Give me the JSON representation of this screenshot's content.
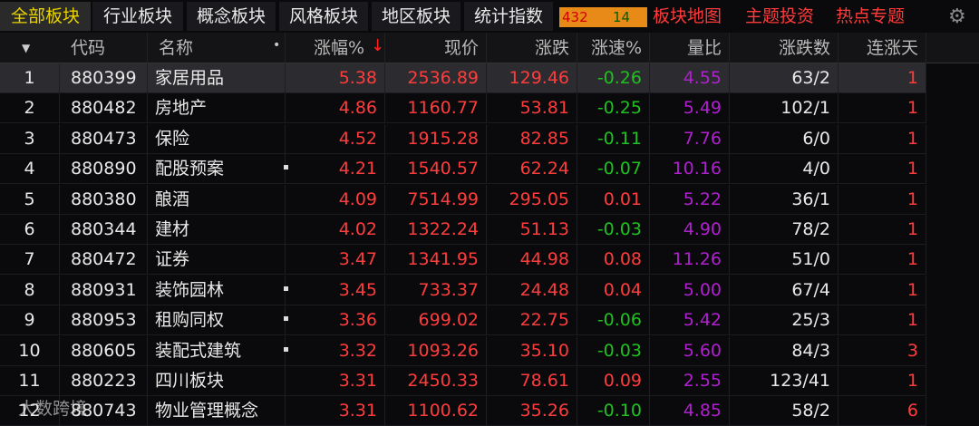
{
  "header": {
    "tabs": [
      "全部板块",
      "行业板块",
      "概念板块",
      "风格板块",
      "地区板块",
      "统计指数"
    ],
    "stats": {
      "up": 432,
      "down": 14
    },
    "links": [
      "板块地图",
      "主题投资",
      "热点专题"
    ]
  },
  "table": {
    "columns": [
      "代码",
      "名称",
      "涨幅%",
      "现价",
      "涨跌",
      "涨速%",
      "量比",
      "涨跌数",
      "连涨天"
    ],
    "rows": [
      [
        "1",
        "880399",
        "家居用品",
        "5.38",
        "2536.89",
        "129.46",
        "-0.26",
        "4.55",
        "63/2",
        "1"
      ],
      [
        "2",
        "880482",
        "房地产",
        "4.86",
        "1160.77",
        "53.81",
        "-0.25",
        "5.49",
        "102/1",
        "1"
      ],
      [
        "3",
        "880473",
        "保险",
        "4.52",
        "1915.28",
        "82.85",
        "-0.11",
        "7.76",
        "6/0",
        "1"
      ],
      [
        "4",
        "880890",
        "配股预案",
        "4.21",
        "1540.57",
        "62.24",
        "-0.07",
        "10.16",
        "4/0",
        "1"
      ],
      [
        "5",
        "880380",
        "酿酒",
        "4.09",
        "7514.99",
        "295.05",
        "0.01",
        "5.22",
        "36/1",
        "1"
      ],
      [
        "6",
        "880344",
        "建材",
        "4.02",
        "1322.24",
        "51.13",
        "-0.03",
        "4.90",
        "78/2",
        "1"
      ],
      [
        "7",
        "880472",
        "证券",
        "3.47",
        "1341.95",
        "44.98",
        "0.08",
        "11.26",
        "51/0",
        "1"
      ],
      [
        "8",
        "880931",
        "装饰园林",
        "3.45",
        "733.37",
        "24.48",
        "0.04",
        "5.00",
        "67/4",
        "1"
      ],
      [
        "9",
        "880953",
        "租购同权",
        "3.36",
        "699.02",
        "22.75",
        "-0.06",
        "5.42",
        "25/3",
        "1"
      ],
      [
        "10",
        "880605",
        "装配式建筑",
        "3.32",
        "1093.26",
        "35.10",
        "-0.03",
        "5.60",
        "84/3",
        "3"
      ],
      [
        "11",
        "880223",
        "四川板块",
        "3.31",
        "2450.33",
        "78.61",
        "0.09",
        "2.55",
        "123/41",
        "1"
      ],
      [
        "12",
        "880743",
        "物业管理概念",
        "3.31",
        "1100.62",
        "35.26",
        "-0.10",
        "4.85",
        "58/2",
        "6"
      ]
    ]
  },
  "watermark": "大数跨境"
}
